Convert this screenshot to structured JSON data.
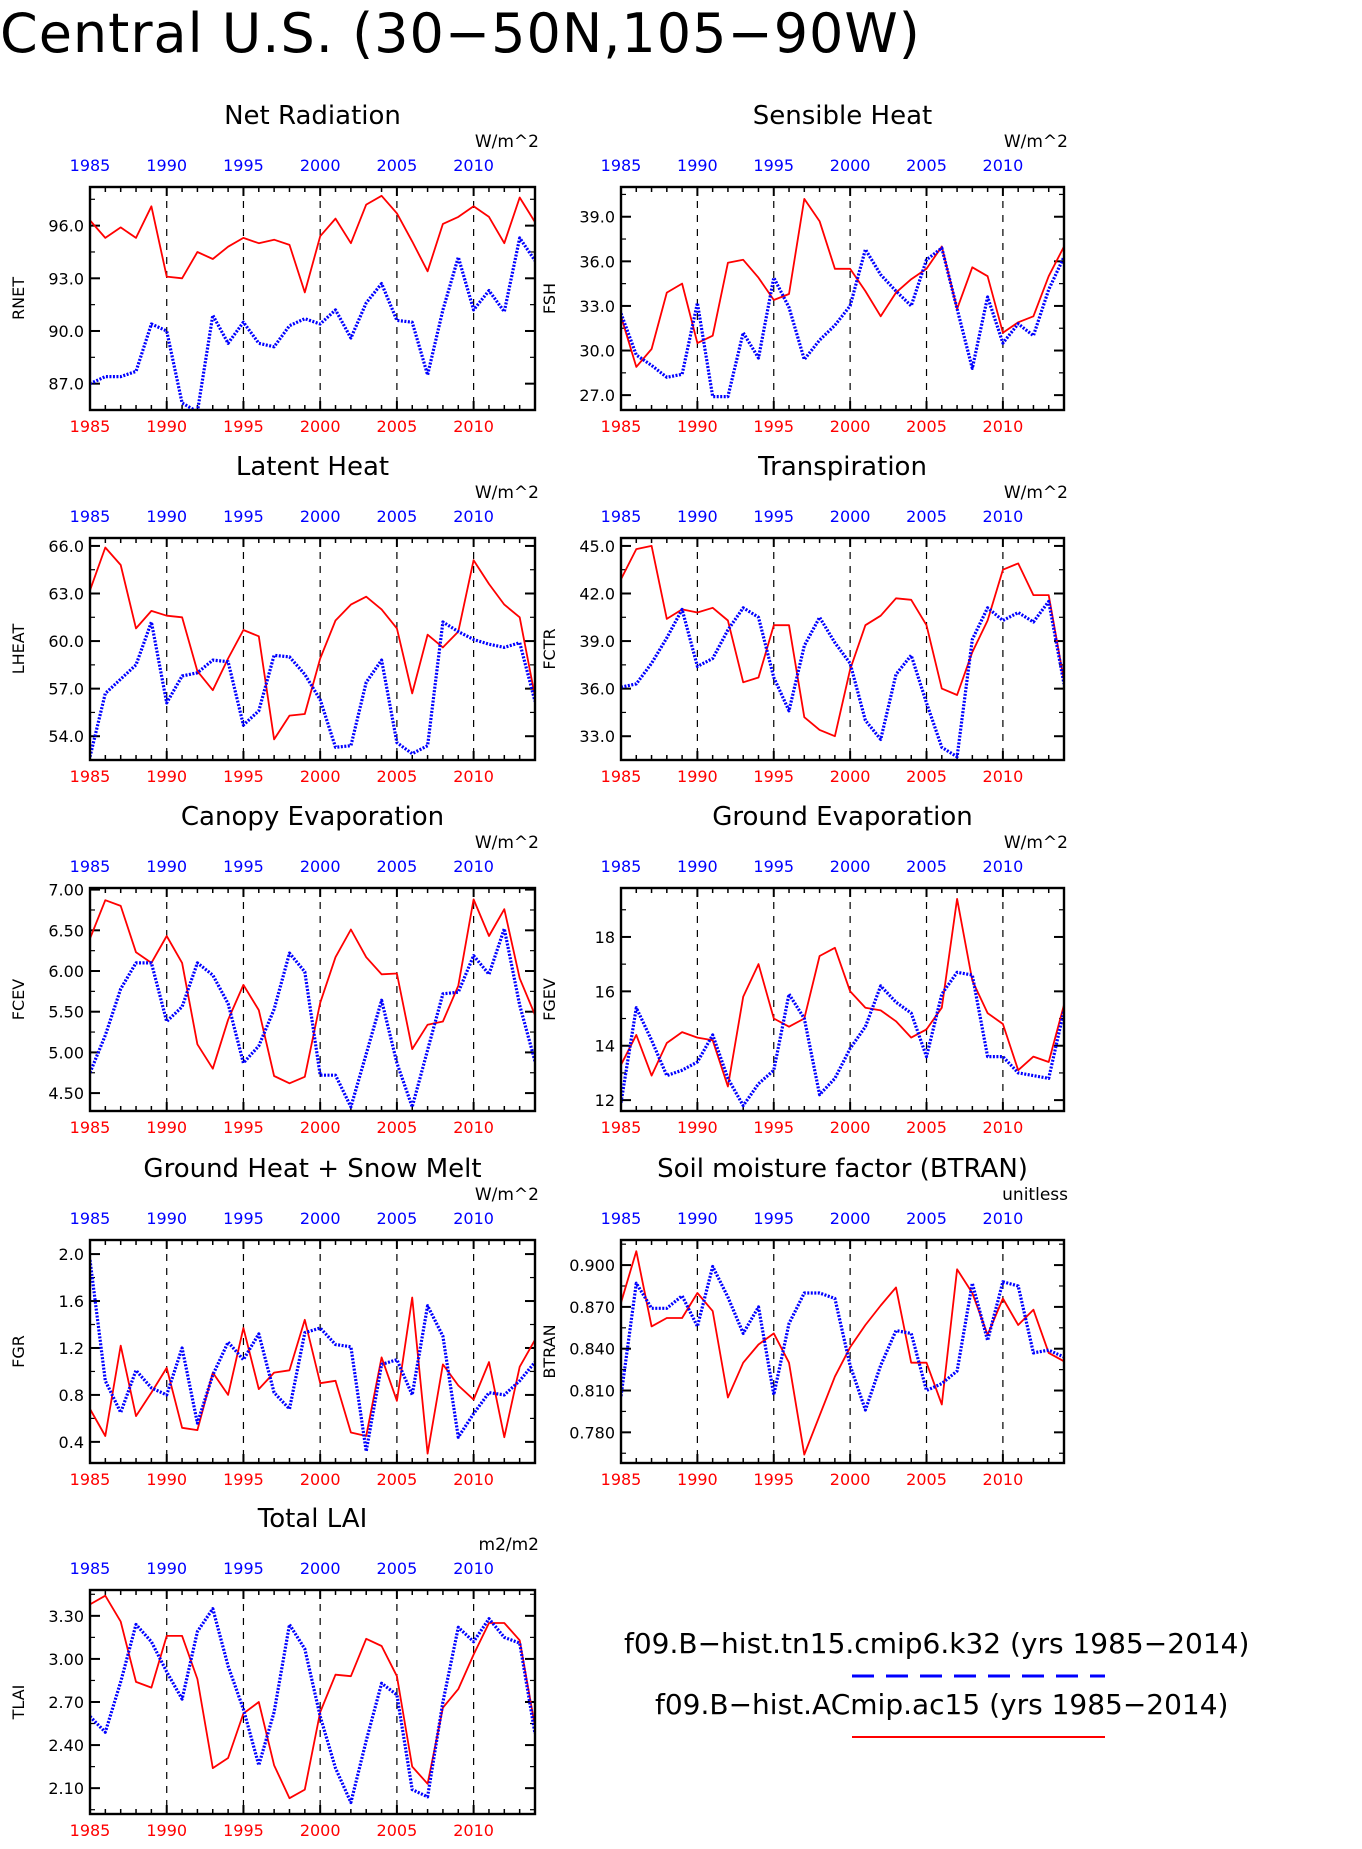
{
  "page_title": "Central U.S. (30−50N,105−90W)",
  "legend": [
    {
      "name": "f09.B−hist.tn15.cmip6.k32 (yrs 1985−2014)",
      "color": "#0000ff",
      "style": "dashed"
    },
    {
      "name": "f09.B−hist.ACmip.ac15 (yrs 1985−2014)",
      "color": "#ff0000",
      "style": "solid"
    }
  ],
  "colors": {
    "blue_series": "#0000ff",
    "red_series": "#ff0000",
    "bottom_axis_labels": "#ff0000",
    "top_axis_labels": "#0000ff"
  },
  "chart_data": [
    {
      "type": "line",
      "title": "Net Radiation",
      "ylabel": "RNET",
      "units": "W/m^2",
      "x_ticks": [
        1985,
        1990,
        1995,
        2000,
        2005,
        2010
      ],
      "xlim": [
        1985,
        2014
      ],
      "ylim": [
        85.5,
        98.2
      ],
      "y_ticks": [
        87.0,
        90.0,
        93.0,
        96.0
      ],
      "y_tick_labels": [
        "87.0",
        "90.0",
        "93.0",
        "96.0"
      ],
      "vertical_dashed_grid": [
        1990,
        1995,
        2000,
        2005,
        2010
      ],
      "series": [
        {
          "values": [
            96.3,
            95.3,
            95.9,
            95.3,
            97.1,
            93.1,
            93.0,
            94.5,
            94.1,
            94.8,
            95.3,
            95.0,
            95.2,
            94.9,
            92.2,
            95.4,
            96.4,
            95.0,
            97.2,
            97.7,
            96.7,
            95.1,
            93.4,
            96.1,
            96.5,
            97.1,
            96.5,
            95.0,
            97.6,
            96.2
          ],
          "color": "#ff0000",
          "style": "solid"
        },
        {
          "values": [
            87.0,
            87.4,
            87.4,
            87.7,
            90.4,
            90.0,
            85.9,
            85.4,
            90.9,
            89.3,
            90.5,
            89.3,
            89.1,
            90.3,
            90.7,
            90.4,
            91.2,
            89.6,
            91.6,
            92.7,
            90.6,
            90.5,
            87.5,
            91.2,
            94.2,
            91.2,
            92.3,
            91.1,
            95.3,
            94.0
          ],
          "color": "#0000ff",
          "style": "dashed"
        }
      ]
    },
    {
      "type": "line",
      "title": "Sensible Heat",
      "ylabel": "FSH",
      "units": "W/m^2",
      "x_ticks": [
        1985,
        1990,
        1995,
        2000,
        2005,
        2010
      ],
      "xlim": [
        1985,
        2014
      ],
      "ylim": [
        26.0,
        41.0
      ],
      "y_ticks": [
        27.0,
        30.0,
        33.0,
        36.0,
        39.0
      ],
      "y_tick_labels": [
        "27.0",
        "30.0",
        "33.0",
        "36.0",
        "39.0"
      ],
      "vertical_dashed_grid": [
        1990,
        1995,
        2000,
        2005,
        2010
      ],
      "series": [
        {
          "values": [
            32.3,
            28.9,
            30.1,
            33.9,
            34.5,
            30.5,
            31.0,
            35.9,
            36.1,
            34.9,
            33.4,
            33.8,
            40.2,
            38.7,
            35.5,
            35.5,
            34.0,
            32.3,
            33.9,
            34.8,
            35.5,
            37.0,
            32.8,
            35.6,
            35.0,
            31.2,
            31.9,
            32.3,
            35.0,
            37.0
          ],
          "color": "#ff0000",
          "style": "solid"
        },
        {
          "values": [
            32.5,
            29.7,
            29.0,
            28.2,
            28.4,
            33.2,
            26.9,
            26.9,
            31.2,
            29.5,
            34.9,
            32.9,
            29.4,
            30.7,
            31.7,
            33.0,
            36.8,
            35.1,
            34.0,
            33.0,
            36.1,
            36.9,
            32.8,
            28.8,
            33.6,
            30.5,
            31.8,
            31.0,
            34.1,
            36.3
          ],
          "color": "#0000ff",
          "style": "dashed"
        }
      ]
    },
    {
      "type": "line",
      "title": "Latent Heat",
      "ylabel": "LHEAT",
      "units": "W/m^2",
      "x_ticks": [
        1985,
        1990,
        1995,
        2000,
        2005,
        2010
      ],
      "xlim": [
        1985,
        2014
      ],
      "ylim": [
        52.5,
        66.5
      ],
      "y_ticks": [
        54.0,
        57.0,
        60.0,
        63.0,
        66.0
      ],
      "y_tick_labels": [
        "54.0",
        "57.0",
        "60.0",
        "63.0",
        "66.0"
      ],
      "vertical_dashed_grid": [
        1990,
        1995,
        2000,
        2005,
        2010
      ],
      "series": [
        {
          "values": [
            63.2,
            65.9,
            64.8,
            60.8,
            61.9,
            61.6,
            61.5,
            58.1,
            56.9,
            58.9,
            60.7,
            60.3,
            53.8,
            55.3,
            55.4,
            58.9,
            61.3,
            62.3,
            62.8,
            62.0,
            60.8,
            56.7,
            60.4,
            59.6,
            60.6,
            65.1,
            63.6,
            62.3,
            61.5,
            56.5
          ],
          "color": "#ff0000",
          "style": "solid"
        },
        {
          "values": [
            52.7,
            56.7,
            57.6,
            58.5,
            61.2,
            56.1,
            57.8,
            58.0,
            58.8,
            58.7,
            54.7,
            55.6,
            59.1,
            59.0,
            57.9,
            56.3,
            53.3,
            53.4,
            57.4,
            58.8,
            53.6,
            52.9,
            53.4,
            61.2,
            60.6,
            60.1,
            59.8,
            59.6,
            59.9,
            56.2
          ],
          "color": "#0000ff",
          "style": "dashed"
        }
      ]
    },
    {
      "type": "line",
      "title": "Transpiration",
      "ylabel": "FCTR",
      "units": "W/m^2",
      "x_ticks": [
        1985,
        1990,
        1995,
        2000,
        2005,
        2010
      ],
      "xlim": [
        1985,
        2014
      ],
      "ylim": [
        31.5,
        45.5
      ],
      "y_ticks": [
        33.0,
        36.0,
        39.0,
        42.0,
        45.0
      ],
      "y_tick_labels": [
        "33.0",
        "36.0",
        "39.0",
        "42.0",
        "45.0"
      ],
      "vertical_dashed_grid": [
        1990,
        1995,
        2000,
        2005,
        2010
      ],
      "series": [
        {
          "values": [
            42.9,
            44.8,
            45.0,
            40.4,
            41.0,
            40.8,
            41.1,
            40.3,
            36.4,
            36.7,
            40.0,
            40.0,
            34.2,
            33.4,
            33.0,
            37.2,
            40.0,
            40.6,
            41.7,
            41.6,
            40.0,
            36.0,
            35.6,
            38.3,
            40.3,
            43.5,
            43.9,
            41.9,
            41.9,
            36.5
          ],
          "color": "#ff0000",
          "style": "solid"
        },
        {
          "values": [
            36.1,
            36.3,
            37.6,
            39.2,
            41.0,
            37.4,
            37.9,
            39.7,
            41.1,
            40.5,
            36.7,
            34.6,
            38.7,
            40.5,
            38.9,
            37.6,
            34.0,
            32.8,
            36.9,
            38.1,
            35.1,
            32.3,
            31.7,
            39.1,
            41.1,
            40.3,
            40.8,
            40.2,
            41.5,
            36.3
          ],
          "color": "#0000ff",
          "style": "dashed"
        }
      ]
    },
    {
      "type": "line",
      "title": "Canopy Evaporation",
      "ylabel": "FCEV",
      "units": "W/m^2",
      "x_ticks": [
        1985,
        1990,
        1995,
        2000,
        2005,
        2010
      ],
      "xlim": [
        1985,
        2014
      ],
      "ylim": [
        4.28,
        7.02
      ],
      "y_ticks": [
        4.5,
        5.0,
        5.5,
        6.0,
        6.5,
        7.0
      ],
      "y_tick_labels": [
        "4.50",
        "5.00",
        "5.50",
        "6.00",
        "6.50",
        "7.00"
      ],
      "vertical_dashed_grid": [
        1990,
        1995,
        2000,
        2005,
        2010
      ],
      "series": [
        {
          "values": [
            6.4,
            6.87,
            6.8,
            6.23,
            6.1,
            6.43,
            6.1,
            5.1,
            4.8,
            5.4,
            5.83,
            5.52,
            4.71,
            4.62,
            4.7,
            5.61,
            6.17,
            6.51,
            6.17,
            5.96,
            5.97,
            5.04,
            5.34,
            5.38,
            5.82,
            6.88,
            6.43,
            6.76,
            5.91,
            5.46
          ],
          "color": "#ff0000",
          "style": "solid"
        },
        {
          "values": [
            4.75,
            5.21,
            5.78,
            6.1,
            6.1,
            5.38,
            5.56,
            6.1,
            5.95,
            5.6,
            4.87,
            5.08,
            5.53,
            6.22,
            5.99,
            4.72,
            4.72,
            4.33,
            4.98,
            5.64,
            4.87,
            4.33,
            5.03,
            5.72,
            5.74,
            6.19,
            5.96,
            6.52,
            5.58,
            4.89
          ],
          "color": "#0000ff",
          "style": "dashed"
        }
      ]
    },
    {
      "type": "line",
      "title": "Ground Evaporation",
      "ylabel": "FGEV",
      "units": "W/m^2",
      "x_ticks": [
        1985,
        1990,
        1995,
        2000,
        2005,
        2010
      ],
      "xlim": [
        1985,
        2014
      ],
      "ylim": [
        11.6,
        19.8
      ],
      "y_ticks": [
        12,
        14,
        16,
        18
      ],
      "y_tick_labels": [
        "12",
        "14",
        "16",
        "18"
      ],
      "vertical_dashed_grid": [
        1990,
        1995,
        2000,
        2005,
        2010
      ],
      "series": [
        {
          "values": [
            13.3,
            14.4,
            12.9,
            14.1,
            14.5,
            14.3,
            14.2,
            12.5,
            15.8,
            17.0,
            15.0,
            14.7,
            15.0,
            17.3,
            17.6,
            16.0,
            15.4,
            15.3,
            14.9,
            14.3,
            14.6,
            15.4,
            19.4,
            16.4,
            15.2,
            14.8,
            13.1,
            13.6,
            13.4,
            15.5
          ],
          "color": "#ff0000",
          "style": "solid"
        },
        {
          "values": [
            11.9,
            15.4,
            14.2,
            12.9,
            13.1,
            13.4,
            14.4,
            12.8,
            11.8,
            12.6,
            13.1,
            15.9,
            15.0,
            12.2,
            12.8,
            13.9,
            14.7,
            16.2,
            15.6,
            15.2,
            13.6,
            15.9,
            16.7,
            16.6,
            13.6,
            13.6,
            13.0,
            12.9,
            12.8,
            15.3
          ],
          "color": "#0000ff",
          "style": "dashed"
        }
      ]
    },
    {
      "type": "line",
      "title": "Ground Heat + Snow Melt",
      "ylabel": "FGR",
      "units": "W/m^2",
      "x_ticks": [
        1985,
        1990,
        1995,
        2000,
        2005,
        2010
      ],
      "xlim": [
        1985,
        2014
      ],
      "ylim": [
        0.22,
        2.12
      ],
      "y_ticks": [
        0.4,
        0.8,
        1.2,
        1.6,
        2.0
      ],
      "y_tick_labels": [
        "0.4",
        "0.8",
        "1.2",
        "1.6",
        "2.0"
      ],
      "vertical_dashed_grid": [
        1990,
        1995,
        2000,
        2005,
        2010
      ],
      "series": [
        {
          "values": [
            0.68,
            0.45,
            1.22,
            0.62,
            0.82,
            1.03,
            0.52,
            0.5,
            0.99,
            0.8,
            1.37,
            0.85,
            0.99,
            1.01,
            1.44,
            0.9,
            0.92,
            0.48,
            0.45,
            1.12,
            0.75,
            1.63,
            0.3,
            1.06,
            0.88,
            0.76,
            1.08,
            0.44,
            1.04,
            1.27
          ],
          "color": "#ff0000",
          "style": "solid"
        },
        {
          "values": [
            1.95,
            0.92,
            0.65,
            1.01,
            0.86,
            0.8,
            1.2,
            0.56,
            0.97,
            1.25,
            1.1,
            1.32,
            0.82,
            0.68,
            1.33,
            1.37,
            1.23,
            1.21,
            0.32,
            1.06,
            1.1,
            0.8,
            1.56,
            1.3,
            0.44,
            0.64,
            0.82,
            0.8,
            0.92,
            1.08
          ],
          "color": "#0000ff",
          "style": "dashed"
        }
      ]
    },
    {
      "type": "line",
      "title": "Soil moisture factor (BTRAN)",
      "ylabel": "BTRAN",
      "units": "unitless",
      "x_ticks": [
        1985,
        1990,
        1995,
        2000,
        2005,
        2010
      ],
      "xlim": [
        1985,
        2014
      ],
      "ylim": [
        0.758,
        0.918
      ],
      "y_ticks": [
        0.78,
        0.81,
        0.84,
        0.87,
        0.9
      ],
      "y_tick_labels": [
        "0.780",
        "0.810",
        "0.840",
        "0.870",
        "0.900"
      ],
      "vertical_dashed_grid": [
        1990,
        1995,
        2000,
        2005,
        2010
      ],
      "series": [
        {
          "values": [
            0.873,
            0.91,
            0.856,
            0.862,
            0.862,
            0.88,
            0.867,
            0.805,
            0.83,
            0.843,
            0.851,
            0.83,
            0.764,
            0.792,
            0.82,
            0.841,
            0.857,
            0.871,
            0.884,
            0.83,
            0.83,
            0.8,
            0.897,
            0.88,
            0.85,
            0.876,
            0.857,
            0.868,
            0.837,
            0.831
          ],
          "color": "#ff0000",
          "style": "solid"
        },
        {
          "values": [
            0.806,
            0.887,
            0.869,
            0.869,
            0.878,
            0.856,
            0.899,
            0.877,
            0.851,
            0.87,
            0.807,
            0.858,
            0.88,
            0.88,
            0.876,
            0.828,
            0.796,
            0.828,
            0.853,
            0.851,
            0.81,
            0.815,
            0.824,
            0.887,
            0.846,
            0.888,
            0.885,
            0.837,
            0.839,
            0.834
          ],
          "color": "#0000ff",
          "style": "dashed"
        }
      ]
    },
    {
      "type": "line",
      "title": "Total LAI",
      "ylabel": "TLAI",
      "units": "m2/m2",
      "x_ticks": [
        1985,
        1990,
        1995,
        2000,
        2005,
        2010
      ],
      "xlim": [
        1985,
        2014
      ],
      "ylim": [
        1.92,
        3.48
      ],
      "y_ticks": [
        2.1,
        2.4,
        2.7,
        3.0,
        3.3
      ],
      "y_tick_labels": [
        "2.10",
        "2.40",
        "2.70",
        "3.00",
        "3.30"
      ],
      "vertical_dashed_grid": [
        1990,
        1995,
        2000,
        2005,
        2010
      ],
      "series": [
        {
          "values": [
            3.38,
            3.44,
            3.26,
            2.84,
            2.8,
            3.16,
            3.16,
            2.86,
            2.24,
            2.31,
            2.62,
            2.7,
            2.26,
            2.03,
            2.09,
            2.63,
            2.89,
            2.88,
            3.14,
            3.09,
            2.88,
            2.25,
            2.13,
            2.66,
            2.79,
            3.03,
            3.25,
            3.25,
            3.13,
            2.53
          ],
          "color": "#ff0000",
          "style": "solid"
        },
        {
          "values": [
            2.6,
            2.49,
            2.84,
            3.24,
            3.12,
            2.91,
            2.72,
            3.19,
            3.35,
            2.95,
            2.65,
            2.26,
            2.63,
            3.24,
            3.07,
            2.6,
            2.24,
            2.0,
            2.43,
            2.83,
            2.75,
            2.09,
            2.04,
            2.7,
            3.22,
            3.12,
            3.28,
            3.15,
            3.11,
            2.48
          ],
          "color": "#0000ff",
          "style": "dashed"
        }
      ]
    }
  ]
}
